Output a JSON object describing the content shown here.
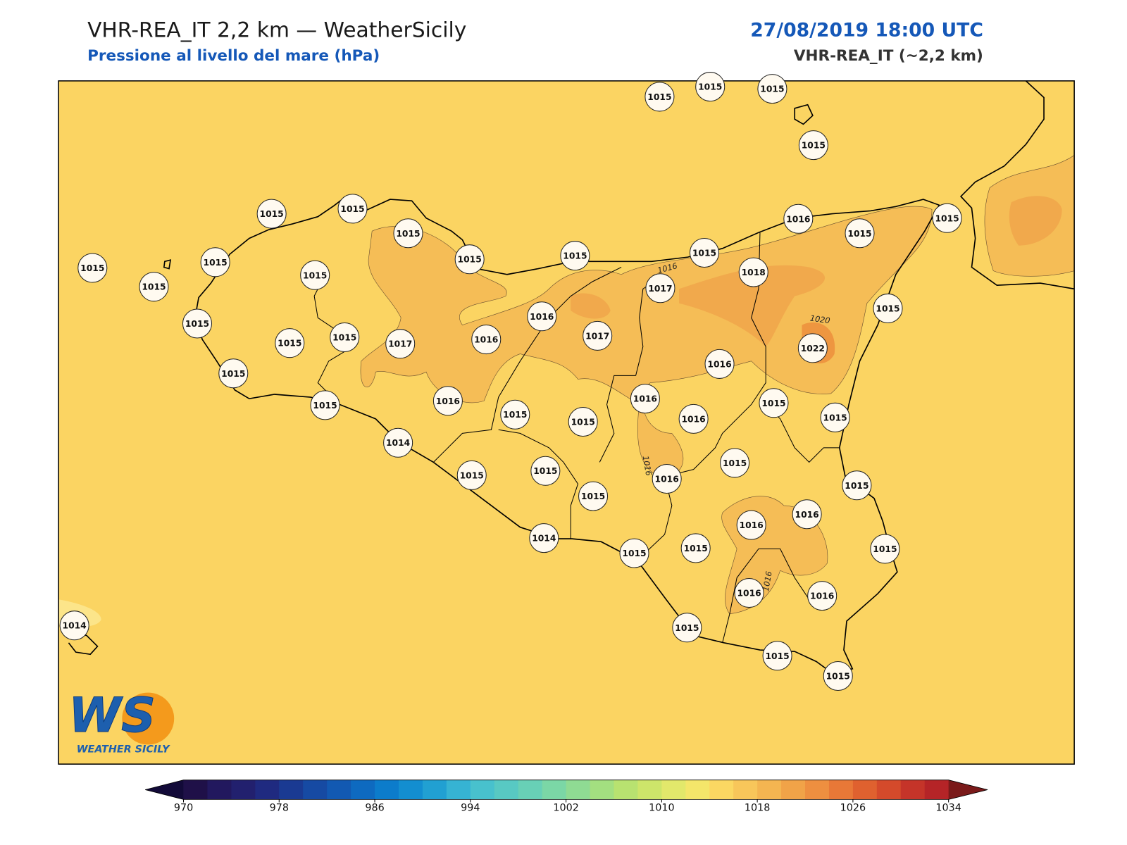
{
  "header": {
    "title": "VHR-REA_IT 2,2 km — WeatherSicily",
    "subtitle": "Pressione al livello del mare (hPa)",
    "date": "27/08/2019 18:00 UTC",
    "model": "VHR-REA_IT (~2,2 km)"
  },
  "map": {
    "stations": [
      1015,
      1015,
      1015,
      1015,
      1015,
      1015,
      1015,
      1015,
      1015,
      1015,
      1016,
      1015,
      1015,
      1015,
      1015,
      1015,
      1015,
      1017,
      1018,
      1015,
      1015,
      1016,
      1015,
      1015,
      1017,
      1016,
      1017,
      1022,
      1016,
      1015,
      1015,
      1016,
      1016,
      1015,
      1015,
      1015,
      1015,
      1016,
      1014,
      1015,
      1015,
      1015,
      1016,
      1015,
      1015,
      1016,
      1016,
      1014,
      1015,
      1015,
      1015,
      1016,
      1016,
      1015,
      1015,
      1015,
      1014
    ],
    "contour_labels": [
      "1016",
      "1020",
      "1016",
      "1016"
    ]
  },
  "logo": {
    "letters": "WS",
    "name": "WEATHER SICILY"
  },
  "colorbar": {
    "range": [
      970,
      1034
    ],
    "ticks": [
      970,
      978,
      986,
      994,
      1002,
      1010,
      1018,
      1026,
      1034
    ],
    "colors": [
      "#1f1048",
      "#22185e",
      "#22206e",
      "#1f2a80",
      "#1a3a92",
      "#164aa3",
      "#1259b2",
      "#0e6ac0",
      "#0c7ccb",
      "#138ed0",
      "#21a0d2",
      "#36b3d3",
      "#48c1cd",
      "#58c9c3",
      "#68d0b6",
      "#7bd7a6",
      "#8fdb93",
      "#a3df80",
      "#b8e270",
      "#cde56a",
      "#e2e86b",
      "#f4e66a",
      "#fbd762",
      "#f8c65a",
      "#f4b551",
      "#f1a348",
      "#ee8f40",
      "#e87837",
      "#df612f",
      "#d44a2b",
      "#c53429",
      "#b52427"
    ],
    "under_color": "#120a38",
    "over_color": "#7a1a1a"
  }
}
